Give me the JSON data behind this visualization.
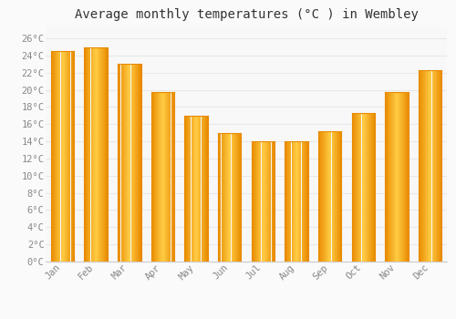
{
  "title": "Average monthly temperatures (°C ) in Wembley",
  "months": [
    "Jan",
    "Feb",
    "Mar",
    "Apr",
    "May",
    "Jun",
    "Jul",
    "Aug",
    "Sep",
    "Oct",
    "Nov",
    "Dec"
  ],
  "values": [
    24.5,
    25.0,
    23.0,
    19.7,
    17.0,
    15.0,
    14.0,
    14.0,
    15.2,
    17.3,
    19.7,
    22.3
  ],
  "bar_color_center": "#FFCC44",
  "bar_color_edge": "#E88A00",
  "background_color": "#FAFAFA",
  "plot_bg_color": "#F8F8F8",
  "grid_color": "#E8E8E8",
  "ytick_labels": [
    "0°C",
    "2°C",
    "4°C",
    "6°C",
    "8°C",
    "10°C",
    "12°C",
    "14°C",
    "16°C",
    "18°C",
    "20°C",
    "22°C",
    "24°C",
    "26°C"
  ],
  "ytick_values": [
    0,
    2,
    4,
    6,
    8,
    10,
    12,
    14,
    16,
    18,
    20,
    22,
    24,
    26
  ],
  "ylim": [
    0,
    27.5
  ],
  "title_fontsize": 10,
  "tick_fontsize": 7.5,
  "tick_color": "#888888",
  "font_family": "monospace",
  "bar_width": 0.7
}
